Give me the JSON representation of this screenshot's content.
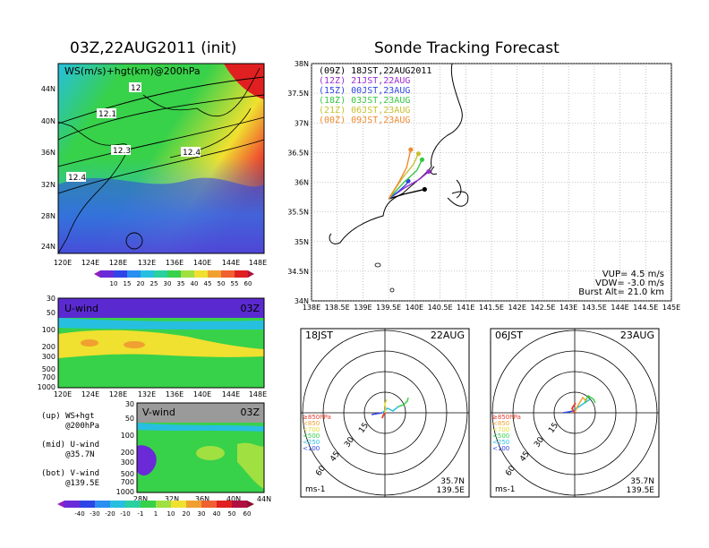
{
  "left_title": "03Z,22AUG2011  (init)",
  "right_title": "Sonde Tracking Forecast",
  "colors": {
    "purple": "#9b2bd1",
    "blue": "#2f45e6",
    "cyan": "#27bfe0",
    "green": "#38d14a",
    "lightgreen": "#8ce04e",
    "yellow": "#f0e030",
    "orange": "#f0a030",
    "red": "#e83a2a",
    "magenta": "#e0207a"
  },
  "map_panel": {
    "label": "WS(m/s)+hgt(km)@200hPa",
    "lat_ticks": [
      "44N",
      "40N",
      "36N",
      "32N",
      "28N",
      "24N"
    ],
    "lon_ticks": [
      "120E",
      "124E",
      "128E",
      "132E",
      "136E",
      "140E",
      "144E",
      "148E"
    ],
    "contour_labels": [
      "12",
      "12.1",
      "12.3",
      "12.4",
      "12.4"
    ],
    "colorbar": [
      "10",
      "15",
      "20",
      "25",
      "30",
      "35",
      "40",
      "45",
      "50",
      "55",
      "60"
    ]
  },
  "u_panel": {
    "label": "U-wind",
    "time": "03Z",
    "p_ticks": [
      "30",
      "50",
      "100",
      "200",
      "300",
      "500",
      "700",
      "1000"
    ],
    "lon_ticks": [
      "120E",
      "124E",
      "128E",
      "132E",
      "136E",
      "140E",
      "144E",
      "148E"
    ]
  },
  "v_panel": {
    "label": "V-wind",
    "time": "03Z",
    "p_ticks": [
      "30",
      "50",
      "100",
      "200",
      "300",
      "500",
      "700",
      "1000"
    ],
    "lat_ticks": [
      "28N",
      "32N",
      "36N",
      "40N",
      "44N"
    ],
    "colorbar": [
      "-40",
      "-30",
      "-20",
      "-10",
      "-1",
      "1",
      "10",
      "20",
      "30",
      "40",
      "50",
      "60"
    ]
  },
  "captions": [
    {
      "line1": "(up) WS+hgt",
      "line2": "     @200hPa"
    },
    {
      "line1": "(mid) U-wind",
      "line2": "     @35.7N"
    },
    {
      "line1": "(bot) V-wind",
      "line2": "     @139.5E"
    }
  ],
  "track_panel": {
    "legend": [
      {
        "run": "(09Z)",
        "time": "18JST,22AUG2011",
        "color": "#000000"
      },
      {
        "run": "(12Z)",
        "time": "21JST,22AUG",
        "color": "#9b2bd1"
      },
      {
        "run": "(15Z)",
        "time": "00JST,23AUG",
        "color": "#2f45e6"
      },
      {
        "run": "(18Z)",
        "time": "03JST,23AUG",
        "color": "#38c840"
      },
      {
        "run": "(21Z)",
        "time": "06JST,23AUG",
        "color": "#c8c030"
      },
      {
        "run": "(00Z)",
        "time": "09JST,23AUG",
        "color": "#f08a30"
      }
    ],
    "lat_ticks": [
      "38N",
      "37.5N",
      "37N",
      "36.5N",
      "36N",
      "35.5N",
      "35N",
      "34.5N",
      "34N"
    ],
    "lon_ticks": [
      "138E",
      "138.5E",
      "139E",
      "139.5E",
      "140E",
      "140.5E",
      "141E",
      "141.5E",
      "142E",
      "142.5E",
      "143E",
      "143.5E",
      "144E",
      "144.5E",
      "145E"
    ],
    "info": [
      "VUP=  4.5  m/s",
      "VDW= -3.0  m/s",
      "Burst Alt=  21.0  km"
    ]
  },
  "chart_data": {
    "type": "scatter",
    "title": "Sonde Tracking Forecast",
    "xlim": [
      138,
      145
    ],
    "ylim": [
      34,
      38
    ],
    "launch": {
      "lon": 139.5,
      "lat": 35.72
    },
    "series": [
      {
        "name": "18JST,22AUG2011",
        "points": [
          [
            139.5,
            35.72
          ],
          [
            139.8,
            35.8
          ],
          [
            140.05,
            35.85
          ],
          [
            140.2,
            35.88
          ]
        ]
      },
      {
        "name": "21JST,22AUG",
        "points": [
          [
            139.5,
            35.72
          ],
          [
            139.8,
            35.9
          ],
          [
            140.1,
            36.05
          ],
          [
            140.28,
            36.18
          ]
        ]
      },
      {
        "name": "00JST,23AUG",
        "points": [
          [
            139.5,
            35.72
          ],
          [
            139.7,
            35.85
          ],
          [
            139.85,
            35.97
          ],
          [
            139.88,
            36.02
          ]
        ]
      },
      {
        "name": "03JST,23AUG",
        "points": [
          [
            139.5,
            35.72
          ],
          [
            139.8,
            36.0
          ],
          [
            140.05,
            36.2
          ],
          [
            140.15,
            36.38
          ]
        ]
      },
      {
        "name": "06JST,23AUG",
        "points": [
          [
            139.5,
            35.72
          ],
          [
            139.75,
            36.05
          ],
          [
            139.98,
            36.3
          ],
          [
            140.08,
            36.48
          ]
        ]
      },
      {
        "name": "09JST,23AUG",
        "points": [
          [
            139.5,
            35.72
          ],
          [
            139.7,
            36.0
          ],
          [
            139.85,
            36.25
          ],
          [
            139.93,
            36.55
          ]
        ]
      }
    ]
  },
  "hodo_left": {
    "time": "18JST",
    "date": "22AUG",
    "rings": [
      "15",
      "30",
      "45",
      "60"
    ],
    "pressure_legend": [
      {
        "label": "≥850hPa",
        "color": "#e83a2a"
      },
      {
        "label": "<850",
        "color": "#f0a030"
      },
      {
        "label": "<700",
        "color": "#e8d830"
      },
      {
        "label": "<500",
        "color": "#38d14a"
      },
      {
        "label": "<250",
        "color": "#27bfe0"
      },
      {
        "label": "<100",
        "color": "#2f45e6"
      }
    ],
    "unit": "ms-1",
    "lat": "35.7N",
    "lon": "139.5E"
  },
  "hodo_right": {
    "time": "06JST",
    "date": "23AUG",
    "rings": [
      "15",
      "30",
      "45",
      "60"
    ],
    "pressure_legend": [
      {
        "label": "≥850hPa",
        "color": "#e83a2a"
      },
      {
        "label": "<850",
        "color": "#f0a030"
      },
      {
        "label": "<700",
        "color": "#e8d830"
      },
      {
        "label": "<500",
        "color": "#38d14a"
      },
      {
        "label": "<250",
        "color": "#27bfe0"
      },
      {
        "label": "<100",
        "color": "#2f45e6"
      }
    ],
    "unit": "ms-1",
    "lat": "35.7N",
    "lon": "139.5E"
  }
}
